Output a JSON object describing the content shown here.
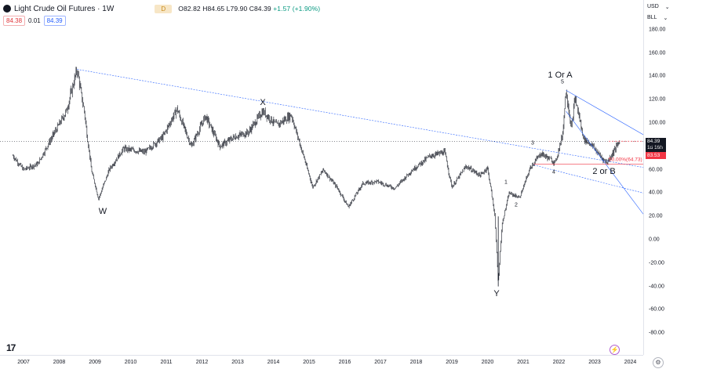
{
  "header": {
    "title": "Light Crude Oil Futures · 1W",
    "badge": "D",
    "ohlc_text": "O82.82 H84.65 L79.90 C84.39",
    "change_text": "+1.57 (+1.90%)"
  },
  "prices": {
    "sell": "84.38",
    "spread": "0.01",
    "buy": "84.39"
  },
  "axis": {
    "currency": "USD",
    "unit": "BLL",
    "last_price": "84.39",
    "countdown": "1d 16h",
    "red_tag": "83.53"
  },
  "wave_labels": {
    "w": "W",
    "x": "X",
    "y": "Y",
    "one_or_a": "1 Or A",
    "two_or_b": "2 or B",
    "sub_1": "1",
    "sub_2": "2",
    "sub_3": "3",
    "sub_4": "4",
    "sub_5": "5"
  },
  "fib_label": "50.00%(64.73)",
  "colors": {
    "trendline": "#2962ff",
    "fib": "#f23645",
    "up": "#089981",
    "badge": "#f7e6c6"
  },
  "icons": {
    "symbol": "symbol-icon",
    "logo": "tradingview-logo-icon",
    "bolt": "bolt-icon",
    "settings": "settings-icon"
  },
  "chart_data": {
    "type": "candlestick",
    "title": "Light Crude Oil Futures · 1W",
    "ylim": [
      -90,
      180
    ],
    "yticks": [
      "180.00",
      "160.00",
      "140.00",
      "120.00",
      "100.00",
      "80.00",
      "60.00",
      "40.00",
      "20.00",
      "0.00",
      "-20.00",
      "-40.00",
      "-60.00",
      "-80.00"
    ],
    "xticks": [
      "2007",
      "2008",
      "2009",
      "2010",
      "2011",
      "2012",
      "2013",
      "2014",
      "2015",
      "2016",
      "2017",
      "2018",
      "2019",
      "2020",
      "2021",
      "2022",
      "2023",
      "2024"
    ],
    "series_path": [
      {
        "t": 2006.7,
        "v": 72
      },
      {
        "t": 2007.0,
        "v": 60
      },
      {
        "t": 2007.4,
        "v": 65
      },
      {
        "t": 2007.8,
        "v": 88
      },
      {
        "t": 2008.2,
        "v": 110
      },
      {
        "t": 2008.5,
        "v": 146
      },
      {
        "t": 2008.7,
        "v": 110
      },
      {
        "t": 2008.9,
        "v": 60
      },
      {
        "t": 2009.1,
        "v": 35
      },
      {
        "t": 2009.4,
        "v": 60
      },
      {
        "t": 2009.8,
        "v": 78
      },
      {
        "t": 2010.4,
        "v": 75
      },
      {
        "t": 2010.9,
        "v": 88
      },
      {
        "t": 2011.3,
        "v": 112
      },
      {
        "t": 2011.7,
        "v": 80
      },
      {
        "t": 2012.1,
        "v": 106
      },
      {
        "t": 2012.5,
        "v": 80
      },
      {
        "t": 2012.9,
        "v": 88
      },
      {
        "t": 2013.3,
        "v": 92
      },
      {
        "t": 2013.7,
        "v": 110
      },
      {
        "t": 2014.1,
        "v": 98
      },
      {
        "t": 2014.5,
        "v": 107
      },
      {
        "t": 2014.9,
        "v": 66
      },
      {
        "t": 2015.1,
        "v": 45
      },
      {
        "t": 2015.4,
        "v": 60
      },
      {
        "t": 2015.8,
        "v": 44
      },
      {
        "t": 2016.1,
        "v": 28
      },
      {
        "t": 2016.5,
        "v": 48
      },
      {
        "t": 2016.9,
        "v": 50
      },
      {
        "t": 2017.4,
        "v": 44
      },
      {
        "t": 2017.9,
        "v": 60
      },
      {
        "t": 2018.4,
        "v": 72
      },
      {
        "t": 2018.8,
        "v": 75
      },
      {
        "t": 2019.0,
        "v": 45
      },
      {
        "t": 2019.4,
        "v": 63
      },
      {
        "t": 2019.8,
        "v": 55
      },
      {
        "t": 2020.0,
        "v": 62
      },
      {
        "t": 2020.2,
        "v": 22
      },
      {
        "t": 2020.3,
        "v": -37
      },
      {
        "t": 2020.4,
        "v": 12
      },
      {
        "t": 2020.6,
        "v": 40
      },
      {
        "t": 2020.9,
        "v": 36
      },
      {
        "t": 2021.2,
        "v": 62
      },
      {
        "t": 2021.5,
        "v": 74
      },
      {
        "t": 2021.9,
        "v": 66
      },
      {
        "t": 2022.1,
        "v": 90
      },
      {
        "t": 2022.2,
        "v": 128
      },
      {
        "t": 2022.35,
        "v": 95
      },
      {
        "t": 2022.45,
        "v": 122
      },
      {
        "t": 2022.7,
        "v": 86
      },
      {
        "t": 2022.9,
        "v": 82
      },
      {
        "t": 2023.2,
        "v": 70
      },
      {
        "t": 2023.35,
        "v": 66
      },
      {
        "t": 2023.5,
        "v": 74
      },
      {
        "t": 2023.7,
        "v": 84.39
      }
    ]
  }
}
